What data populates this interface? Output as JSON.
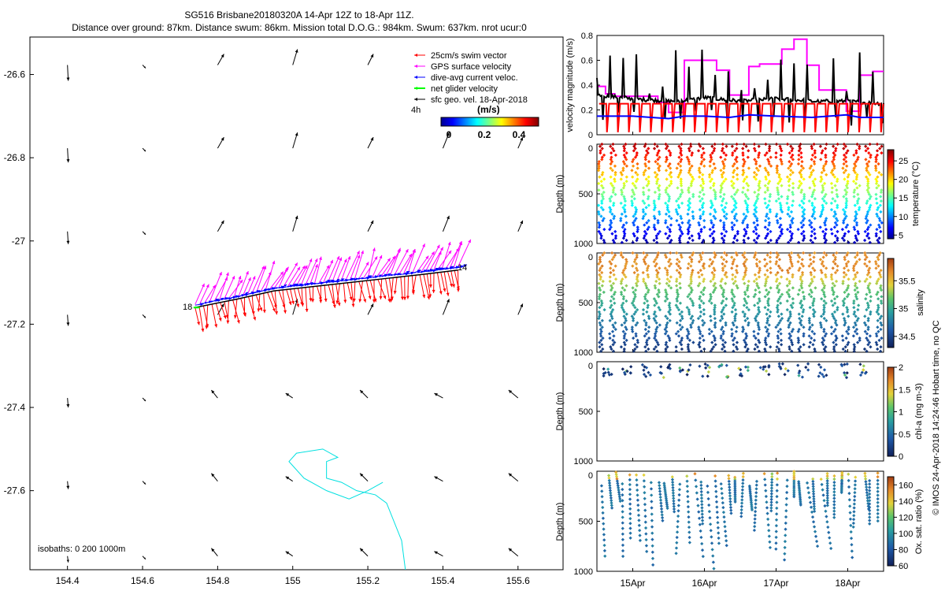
{
  "header": {
    "line1": "SG516 Brisbane20180320A 14-Apr 12Z to 18-Apr 11Z.",
    "line2": "Distance over ground: 87km. Distance swum: 86km. Mission total D.O.G.: 984km. Swum: 637km. nrot ucur:0"
  },
  "legend": {
    "items": [
      {
        "label": "25cm/s swim vector",
        "color": "#ff0000"
      },
      {
        "label": "GPS surface velocity",
        "color": "#ff00ff"
      },
      {
        "label": "dive-avg current veloc.",
        "color": "#0000ff"
      },
      {
        "label": "net glider velocity",
        "color": "#00ff00"
      },
      {
        "label": "sfc geo. vel. 18-Apr-2018",
        "color": "#000000"
      }
    ],
    "interval": "4h",
    "colorbar_title": "(m/s)",
    "colorbar_ticks": [
      "0",
      "0.2",
      "0.4"
    ]
  },
  "map_labels": {
    "start_label": "18",
    "end_label": "14",
    "isobaths": "isobaths: 0   200  1000m"
  },
  "watermark": "© IMOS 24-Apr-2018 14:24:46 Hobart time, no QC",
  "chart_data": [
    {
      "type": "scatter",
      "name": "map",
      "xlim": [
        154.3,
        155.72
      ],
      "ylim": [
        -27.79,
        -26.51
      ],
      "x_ticks": [
        154.4,
        154.6,
        154.8,
        155,
        155.2,
        155.4,
        155.6
      ],
      "x_tick_labels": [
        "154.4",
        "154.6",
        "154.8",
        "155",
        "155.2",
        "155.4",
        "155.6"
      ],
      "y_ticks": [
        -26.6,
        -26.8,
        -27,
        -27.2,
        -27.4,
        -27.6
      ],
      "y_tick_labels": [
        "-26.6",
        "-26.8",
        "-27",
        "-27.2",
        "-27.4",
        "-27.6"
      ],
      "glider_track": {
        "lon": [
          154.74,
          154.85,
          154.95,
          155.05,
          155.15,
          155.25,
          155.35,
          155.44
        ],
        "lat": [
          -27.16,
          -27.14,
          -27.12,
          -27.11,
          -27.1,
          -27.09,
          -27.08,
          -27.07
        ]
      },
      "isobath_1000m": {
        "lon": [
          155.3,
          155.29,
          155.25,
          155.22,
          155.17,
          155.13,
          155.09,
          155.09,
          155.12,
          155.08,
          155.01,
          154.99,
          155.03,
          155.09,
          155.15,
          155.2,
          155.24
        ],
        "lat": [
          -27.79,
          -27.72,
          -27.63,
          -27.61,
          -27.6,
          -27.58,
          -27.57,
          -27.53,
          -27.52,
          -27.5,
          -27.51,
          -27.53,
          -27.57,
          -27.6,
          -27.62,
          -27.6,
          -27.58
        ]
      }
    },
    {
      "type": "line",
      "name": "velocity",
      "ylabel": "velocity magnitude (m/s)",
      "ylim": [
        0,
        0.8
      ],
      "y_ticks": [
        "0",
        "0.2",
        "0.4",
        "0.6",
        "0.8"
      ],
      "x_range_days": [
        14.5,
        18.5
      ],
      "series": [
        {
          "color": "#ff00ff",
          "x": [
            14.5,
            14.62,
            14.62,
            14.75,
            14.75,
            15.35,
            15.35,
            15.5,
            15.5,
            15.72,
            15.72,
            16.17,
            16.17,
            16.35,
            16.35,
            16.62,
            16.62,
            16.77,
            16.77,
            17.08,
            17.08,
            17.25,
            17.25,
            17.43,
            17.43,
            17.6,
            17.6,
            17.98,
            17.98,
            18.17,
            18.17,
            18.35,
            18.35,
            18.5
          ],
          "y": [
            0.39,
            0.39,
            0.33,
            0.33,
            0.31,
            0.31,
            0.26,
            0.26,
            0.18,
            0.18,
            0.6,
            0.6,
            0.52,
            0.52,
            0.32,
            0.32,
            0.55,
            0.55,
            0.57,
            0.57,
            0.69,
            0.69,
            0.77,
            0.77,
            0.56,
            0.56,
            0.36,
            0.36,
            0.19,
            0.19,
            0.48,
            0.48,
            0.51,
            0.51
          ]
        },
        {
          "color": "#000000",
          "x": [
            14.5,
            15.0,
            15.5,
            15.8,
            16.0,
            16.5,
            17.0,
            17.3,
            17.5,
            18.0,
            18.5
          ],
          "y": [
            0.32,
            0.29,
            0.27,
            0.28,
            0.3,
            0.27,
            0.29,
            0.28,
            0.27,
            0.27,
            0.25
          ]
        },
        {
          "color": "#ff0000",
          "x": [
            14.5,
            15.0,
            15.5,
            16.0,
            16.5,
            17.0,
            17.5,
            18.0,
            18.5
          ],
          "y": [
            0.25,
            0.25,
            0.25,
            0.25,
            0.25,
            0.25,
            0.25,
            0.25,
            0.25
          ]
        },
        {
          "color": "#0000ff",
          "x": [
            14.5,
            14.62,
            15.0,
            15.5,
            15.72,
            16.0,
            16.35,
            16.62,
            17.0,
            17.5,
            17.98,
            18.17,
            18.5
          ],
          "y": [
            0.15,
            0.15,
            0.15,
            0.13,
            0.15,
            0.15,
            0.14,
            0.16,
            0.15,
            0.14,
            0.16,
            0.14,
            0.14
          ]
        }
      ]
    },
    {
      "type": "scatter",
      "name": "temperature",
      "ylabel": "Depth (m)",
      "ylim": [
        1000,
        0
      ],
      "y_ticks": [
        "0",
        "500",
        "1000"
      ],
      "colorbar_label": "temperature (°C)",
      "colorbar_range": [
        4,
        28
      ],
      "colorbar_ticks": [
        "5",
        "10",
        "15",
        "20",
        "25"
      ],
      "profiles": 26
    },
    {
      "type": "scatter",
      "name": "salinity",
      "ylabel": "Depth (m)",
      "ylim": [
        1000,
        0
      ],
      "y_ticks": [
        "0",
        "500",
        "1000"
      ],
      "colorbar_label": "salinity",
      "colorbar_range": [
        34.3,
        35.9
      ],
      "colorbar_ticks": [
        "34.5",
        "35",
        "35.5"
      ],
      "profiles": 26
    },
    {
      "type": "scatter",
      "name": "chla",
      "ylabel": "Depth (m)",
      "ylim": [
        1000,
        0
      ],
      "y_ticks": [
        "0",
        "500",
        "1000"
      ],
      "colorbar_label": "chl-a (mg m-3)",
      "colorbar_range": [
        0,
        2
      ],
      "colorbar_ticks": [
        "0",
        "0.5",
        "1",
        "1.5",
        "2"
      ]
    },
    {
      "type": "scatter",
      "name": "oxygen",
      "ylabel": "Depth (m)",
      "ylim": [
        1000,
        0
      ],
      "y_ticks": [
        "0",
        "500",
        "1000"
      ],
      "colorbar_label": "Ox. sat. ratio (%)",
      "colorbar_range": [
        60,
        170
      ],
      "colorbar_ticks": [
        "60",
        "80",
        "100",
        "120",
        "140",
        "160"
      ],
      "x_ticks": [
        "15Apr",
        "16Apr",
        "17Apr",
        "18Apr"
      ]
    }
  ]
}
